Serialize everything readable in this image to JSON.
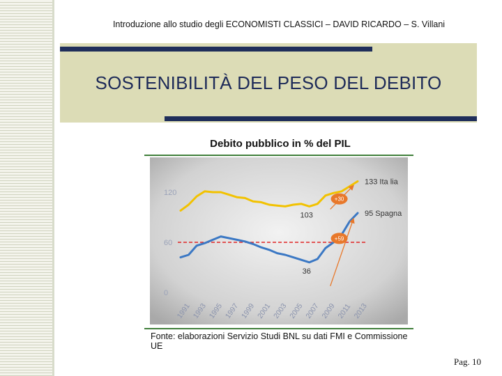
{
  "header": {
    "course_line": "Introduzione allo studio degli ECONOMISTI CLASSICI – DAVID RICARDO – S. Villani",
    "slide_title": "SOSTENIBILITÀ DEL PESO DEL DEBITO"
  },
  "footer": {
    "source": "Fonte: elaborazioni Servizio Studi BNL su dati FMI e Commissione UE",
    "page": "Pag. 10"
  },
  "colors": {
    "italy": "#f2c200",
    "spain": "#3b78c4",
    "reference": "#e02424",
    "annotation": "#e8782a",
    "background_center": "#f2f2f2",
    "background_edge": "#a9a9a9"
  },
  "chart_data": {
    "type": "line",
    "title": "Debito pubblico in % del PIL",
    "xlabel": "",
    "ylabel": "",
    "ylim": [
      0,
      150
    ],
    "yticks": [
      0,
      60,
      120
    ],
    "xlim": [
      1990,
      2014
    ],
    "xticks": [
      "1991",
      "1993",
      "1995",
      "1997",
      "1999",
      "2001",
      "2003",
      "2005",
      "2007",
      "2009",
      "2011",
      "2013"
    ],
    "grid": false,
    "series": [
      {
        "name": "Italia",
        "color": "#f2c200",
        "x": [
          1991,
          1992,
          1993,
          1994,
          1995,
          1996,
          1997,
          1998,
          1999,
          2000,
          2001,
          2002,
          2003,
          2004,
          2005,
          2006,
          2007,
          2008,
          2009,
          2010,
          2011,
          2012,
          2013
        ],
        "values": [
          98,
          105,
          115,
          121,
          120,
          120,
          117,
          114,
          113,
          109,
          108,
          105,
          104,
          103,
          105,
          106,
          103,
          106,
          116,
          119,
          121,
          127,
          133
        ]
      },
      {
        "name": "Spagna",
        "color": "#3b78c4",
        "x": [
          1991,
          1992,
          1993,
          1994,
          1995,
          1996,
          1997,
          1998,
          1999,
          2000,
          2001,
          2002,
          2003,
          2004,
          2005,
          2006,
          2007,
          2008,
          2009,
          2010,
          2011,
          2012,
          2013
        ],
        "values": [
          42,
          45,
          56,
          59,
          63,
          67,
          65,
          63,
          61,
          58,
          54,
          51,
          47,
          45,
          42,
          39,
          36,
          40,
          53,
          60,
          69,
          85,
          95
        ]
      }
    ],
    "reference_lines": [
      {
        "y": 60,
        "style": "dashed",
        "color": "#e02424"
      }
    ],
    "end_labels": [
      "133 Ita lia",
      "95 Spagna"
    ],
    "point_labels": [
      {
        "x": 2007,
        "y": 103,
        "text": "103"
      },
      {
        "x": 2007,
        "y": 36,
        "text": "36"
      }
    ],
    "annotations": [
      {
        "text": "+30",
        "x1": 2007,
        "y1": 103,
        "x2": 2013,
        "y2": 133
      },
      {
        "text": "+59",
        "x1": 2007,
        "y1": 36,
        "x2": 2013,
        "y2": 95
      }
    ]
  }
}
